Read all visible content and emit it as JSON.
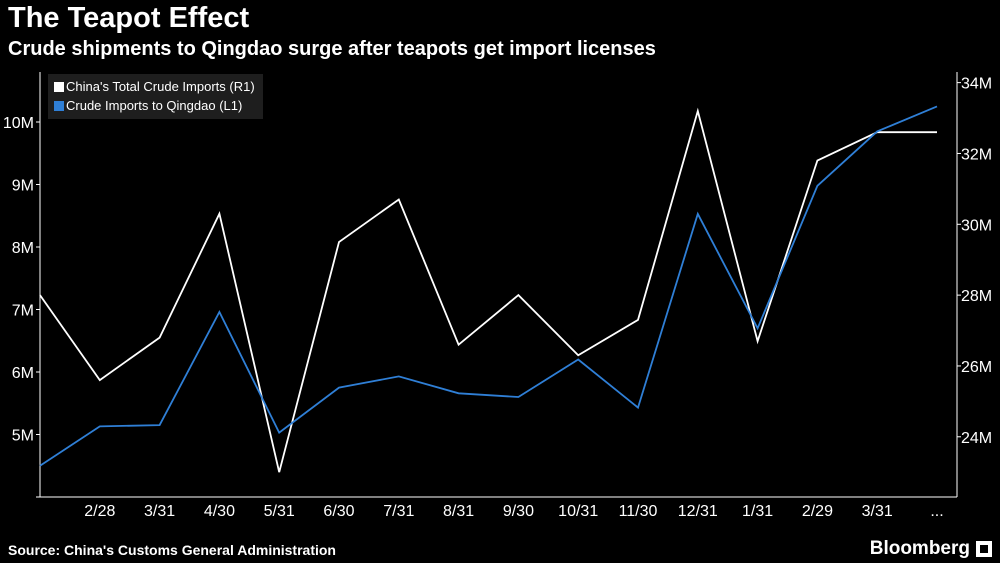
{
  "header": {
    "title": "The Teapot Effect",
    "subtitle": "Crude shipments to Qingdao surge after teapots get import licenses"
  },
  "footer": {
    "source": "Source: China's Customs General Administration",
    "brand": "Bloomberg"
  },
  "colors": {
    "background": "#000000",
    "total_series": "#ffffff",
    "qingdao_series": "#2f7fd6",
    "axis": "#ffffff"
  },
  "chart_data": {
    "type": "line",
    "title": "The Teapot Effect",
    "subtitle": "Crude shipments to Qingdao surge after teapots get import licenses",
    "categories": [
      "",
      "2/28",
      "3/31",
      "4/30",
      "5/31",
      "6/30",
      "7/31",
      "8/31",
      "9/30",
      "10/31",
      "11/30",
      "12/31",
      "1/31",
      "2/29",
      "3/31",
      "..."
    ],
    "series": [
      {
        "name": "China's Total Crude Imports (R1)",
        "axis": "right",
        "color": "#ffffff",
        "values": [
          28.0,
          25.6,
          26.8,
          30.3,
          23.0,
          29.5,
          30.7,
          26.6,
          28.0,
          26.3,
          27.3,
          33.2,
          26.7,
          31.8,
          32.6,
          32.6
        ]
      },
      {
        "name": "Crude Imports to Qingdao (L1)",
        "axis": "left",
        "color": "#2f7fd6",
        "values": [
          4.5,
          5.13,
          5.15,
          6.96,
          5.03,
          5.75,
          5.93,
          5.66,
          5.6,
          6.2,
          5.43,
          8.53,
          6.7,
          8.98,
          9.85,
          10.25
        ]
      }
    ],
    "left_axis": {
      "min": 4,
      "max": 10.8,
      "ticks": [
        5,
        6,
        7,
        8,
        9,
        10
      ],
      "tick_labels": [
        "5M",
        "6M",
        "7M",
        "8M",
        "9M",
        "10M"
      ]
    },
    "right_axis": {
      "min": 22.3,
      "max": 34.3,
      "ticks": [
        24,
        26,
        28,
        30,
        32,
        34
      ],
      "tick_labels": [
        "24M",
        "26M",
        "28M",
        "30M",
        "32M",
        "34M"
      ]
    },
    "legend": {
      "position": "top-left"
    },
    "grid": false
  }
}
